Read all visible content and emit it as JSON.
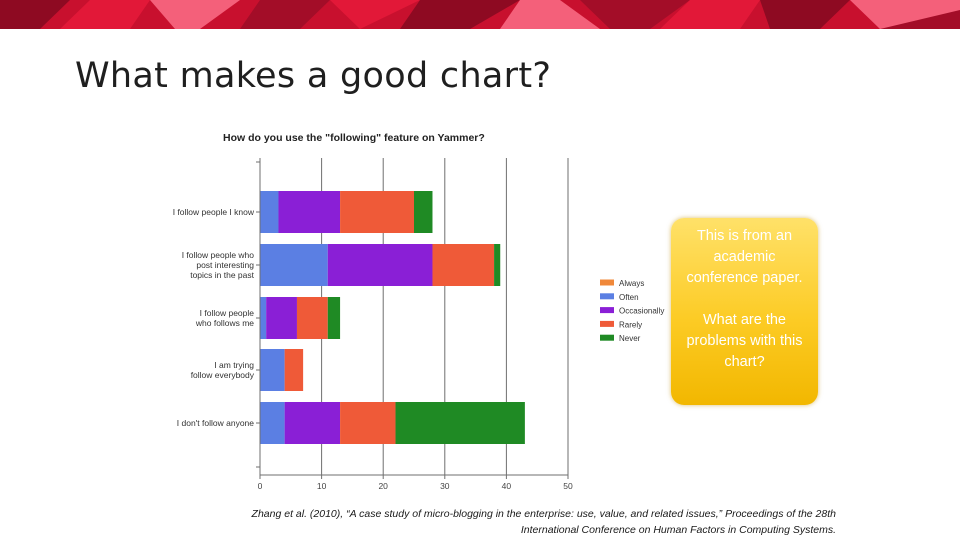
{
  "slide": {
    "title": "What makes a good chart?",
    "callout": {
      "line1": "This is from an academic conference paper.",
      "line2": "What are the problems with this chart?"
    },
    "citation": {
      "line1": "Zhang et al. (2010), “A case study of micro-blogging in the enterprise: use, value, and related issues,” Proceedings of the 28th",
      "line2": "International Conference on Human Factors in Computing Systems."
    },
    "banner_colors": [
      "#c8102e",
      "#e21838",
      "#8e0a22",
      "#f4607a",
      "#a30d28"
    ]
  },
  "chart_data": {
    "type": "bar",
    "orientation": "horizontal",
    "stacked": true,
    "title": "How do you use the \"following\" feature on Yammer?",
    "categories": [
      [
        "I follow people I know"
      ],
      [
        "I follow people who",
        "post interesting",
        "topics in the past"
      ],
      [
        "I follow people",
        "who follows me"
      ],
      [
        "I am trying",
        "follow everybody"
      ],
      [
        "I don't follow anyone"
      ]
    ],
    "series": [
      {
        "name": "Always",
        "color": "#f0883a",
        "values": [
          0,
          0,
          0,
          0,
          0
        ]
      },
      {
        "name": "Often",
        "color": "#5b7fe3",
        "values": [
          3,
          11,
          1,
          4,
          4
        ]
      },
      {
        "name": "Occasionally",
        "color": "#8a1fd6",
        "values": [
          10,
          17,
          5,
          0,
          9
        ]
      },
      {
        "name": "Rarely",
        "color": "#ef5a38",
        "values": [
          12,
          10,
          5,
          3,
          9
        ]
      },
      {
        "name": "Never",
        "color": "#1f8a24",
        "values": [
          3,
          1,
          2,
          0,
          21
        ]
      }
    ],
    "xlim": [
      0,
      50
    ],
    "xticks": [
      0,
      10,
      20,
      30,
      40,
      50
    ],
    "grid": true,
    "legend_position": "right"
  }
}
